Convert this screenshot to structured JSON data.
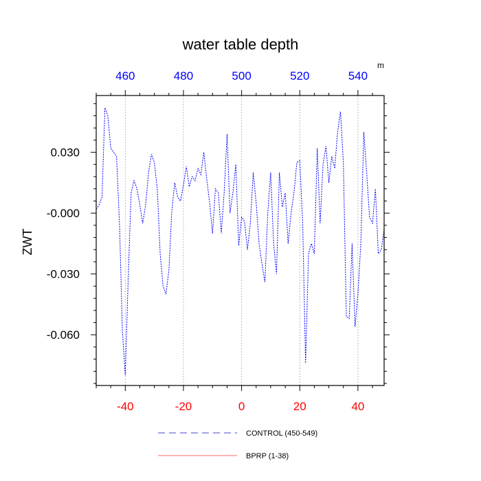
{
  "chart_data": {
    "type": "line",
    "title": "water table depth",
    "ylabel": "ZWT",
    "top_axis_unit": "m",
    "xlim": [
      -50,
      49
    ],
    "ylim": [
      -0.085,
      0.058
    ],
    "x_ticks": [
      -40,
      -20,
      0,
      20,
      40
    ],
    "top_ticks": [
      460,
      480,
      500,
      520,
      540
    ],
    "top_offset": 500,
    "y_ticks": [
      0.03,
      0.0,
      -0.03,
      -0.06
    ],
    "y_tick_labels": [
      "0.030",
      "-0.000",
      "-0.030",
      "-0.060"
    ],
    "grid_x": true,
    "colors": {
      "series_control": "#0000ff",
      "series_bprp": "#ff6666",
      "bottom_ticks": "#ff0000",
      "top_ticks": "#0000ff"
    },
    "legend": [
      {
        "label": "CONTROL (450-549)",
        "style": "dashed",
        "color": "#4444cc"
      },
      {
        "label": "BPRP (1-38)",
        "style": "solid",
        "color": "#ff6666"
      }
    ],
    "series": [
      {
        "name": "CONTROL (450-549)",
        "x": [
          -50,
          -49,
          -48,
          -47,
          -46,
          -45,
          -44,
          -43,
          -42,
          -41,
          -40,
          -39,
          -38,
          -37,
          -36,
          -35,
          -34,
          -33,
          -32,
          -31,
          -30,
          -29,
          -28,
          -27,
          -26,
          -25,
          -24,
          -23,
          -22,
          -21,
          -20,
          -19,
          -18,
          -17,
          -16,
          -15,
          -14,
          -13,
          -12,
          -11,
          -10,
          -9,
          -8,
          -7,
          -6,
          -5,
          -4,
          -3,
          -2,
          -1,
          0,
          1,
          2,
          3,
          4,
          5,
          6,
          7,
          8,
          9,
          10,
          11,
          12,
          13,
          14,
          15,
          16,
          17,
          18,
          19,
          20,
          21,
          22,
          23,
          24,
          25,
          26,
          27,
          28,
          29,
          30,
          31,
          32,
          33,
          34,
          35,
          36,
          37,
          38,
          39,
          40,
          41,
          42,
          43,
          44,
          45,
          46,
          47,
          48,
          49
        ],
        "y": [
          0.002,
          0.004,
          0.008,
          0.052,
          0.048,
          0.032,
          0.03,
          0.028,
          -0.005,
          -0.058,
          -0.08,
          -0.032,
          0.01,
          0.016,
          0.012,
          0.004,
          -0.005,
          0.004,
          0.02,
          0.029,
          0.025,
          0.012,
          -0.02,
          -0.036,
          -0.04,
          -0.028,
          0.001,
          0.015,
          0.008,
          0.006,
          0.014,
          0.023,
          0.013,
          0.018,
          0.016,
          0.022,
          0.019,
          0.03,
          0.017,
          0.005,
          -0.01,
          0.012,
          0.01,
          -0.01,
          0.01,
          0.039,
          0.0,
          0.01,
          0.024,
          -0.016,
          -0.002,
          -0.004,
          -0.018,
          -0.005,
          0.02,
          0.005,
          -0.015,
          -0.025,
          -0.034,
          0.0,
          0.02,
          -0.015,
          -0.03,
          0.02,
          0.003,
          0.01,
          -0.015,
          0.0,
          0.01,
          0.025,
          0.026,
          -0.005,
          -0.074,
          -0.02,
          -0.015,
          -0.02,
          0.032,
          -0.005,
          0.024,
          0.033,
          0.015,
          0.028,
          0.022,
          0.04,
          0.05,
          0.025,
          -0.051,
          -0.052,
          -0.015,
          -0.056,
          -0.04,
          -0.015,
          0.04,
          0.02,
          -0.002,
          -0.005,
          0.012,
          -0.02,
          -0.018,
          -0.008
        ]
      }
    ]
  }
}
